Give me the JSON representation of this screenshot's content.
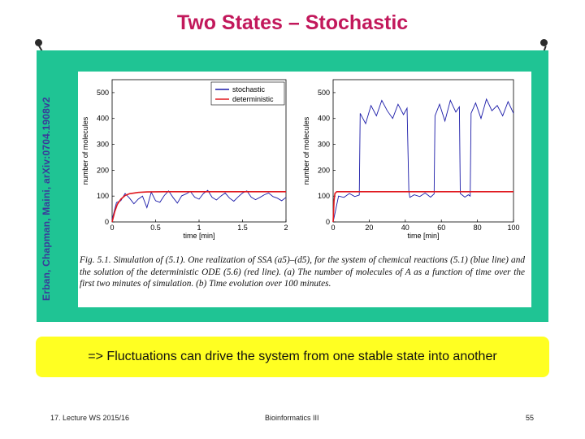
{
  "slide": {
    "title": "Two States – Stochastic",
    "vertical_credit": "Erban, Chapman, Maini, arXiv:0704.1908v2",
    "caption": "Fig. 5.1.  Simulation of (5.1).  One realization of SSA (a5)–(d5), for the system of chemical reactions (5.1) (blue line) and the solution of the deterministic ODE (5.6) (red line).  (a) The number of molecules of A as a function of time over the first two minutes of simulation.  (b) Time evolution over 100 minutes.",
    "note": "=> Fluctuations can drive the system from one stable state into another",
    "footer": {
      "left": "17. Lecture WS 2015/16",
      "center": "Bioinformatics III",
      "right": "55"
    }
  },
  "chart_data": [
    {
      "type": "line",
      "panel": "a",
      "xlabel": "time [min]",
      "ylabel": "number of molecules",
      "xlim": [
        0,
        2
      ],
      "ylim": [
        0,
        550
      ],
      "xticks": [
        0,
        0.5,
        1,
        1.5,
        2
      ],
      "yticks": [
        0,
        100,
        200,
        300,
        400,
        500
      ],
      "legend": {
        "placement": "top-right",
        "entries": [
          "stochastic",
          "deterministic"
        ]
      },
      "series": [
        {
          "name": "stochastic",
          "color": "#1a1aa8",
          "x": [
            0,
            0.05,
            0.1,
            0.15,
            0.2,
            0.25,
            0.3,
            0.35,
            0.4,
            0.45,
            0.5,
            0.55,
            0.6,
            0.65,
            0.7,
            0.75,
            0.8,
            0.85,
            0.9,
            0.95,
            1.0,
            1.05,
            1.1,
            1.15,
            1.2,
            1.25,
            1.3,
            1.35,
            1.4,
            1.45,
            1.5,
            1.55,
            1.6,
            1.65,
            1.7,
            1.75,
            1.8,
            1.85,
            1.9,
            1.95,
            2.0
          ],
          "y": [
            10,
            75,
            82,
            110,
            92,
            70,
            88,
            100,
            55,
            115,
            82,
            76,
            102,
            120,
            95,
            73,
            101,
            108,
            118,
            96,
            88,
            110,
            122,
            95,
            85,
            100,
            112,
            92,
            80,
            97,
            112,
            120,
            96,
            86,
            95,
            105,
            112,
            98,
            92,
            82,
            95
          ]
        },
        {
          "name": "deterministic",
          "color": "#e0191f",
          "x": [
            0,
            0.03,
            0.06,
            0.1,
            0.15,
            0.2,
            0.3,
            0.4,
            0.6,
            0.8,
            1.0,
            1.5,
            2.0
          ],
          "y": [
            0,
            40,
            68,
            88,
            102,
            109,
            114,
            116,
            117,
            117,
            117,
            117,
            117
          ]
        }
      ]
    },
    {
      "type": "line",
      "panel": "b",
      "xlabel": "time [min]",
      "ylabel": "number of molecules",
      "xlim": [
        0,
        100
      ],
      "ylim": [
        0,
        550
      ],
      "xticks": [
        0,
        20,
        40,
        60,
        80,
        100
      ],
      "yticks": [
        0,
        100,
        200,
        300,
        400,
        500
      ],
      "series": [
        {
          "name": "stochastic",
          "color": "#1a1aa8",
          "x": [
            0,
            3,
            6,
            9,
            12,
            14.5,
            15,
            18,
            21,
            24,
            27,
            30,
            33,
            36,
            39,
            41,
            42,
            42.5,
            45,
            48,
            51,
            54,
            56,
            56.5,
            59,
            62,
            65,
            68,
            70,
            70.5,
            73,
            75,
            76,
            76.5,
            79,
            82,
            85,
            88,
            91,
            94,
            97,
            100
          ],
          "y": [
            0,
            100,
            95,
            110,
            98,
            104,
            420,
            380,
            450,
            410,
            470,
            430,
            400,
            455,
            415,
            440,
            120,
            95,
            105,
            98,
            112,
            96,
            108,
            410,
            455,
            390,
            470,
            425,
            445,
            110,
            96,
            105,
            100,
            420,
            460,
            400,
            475,
            430,
            450,
            410,
            465,
            420
          ]
        },
        {
          "name": "deterministic",
          "color": "#e0191f",
          "x": [
            0,
            0.5,
            1,
            2,
            100
          ],
          "y": [
            0,
            80,
            110,
            117,
            117
          ]
        }
      ]
    }
  ]
}
